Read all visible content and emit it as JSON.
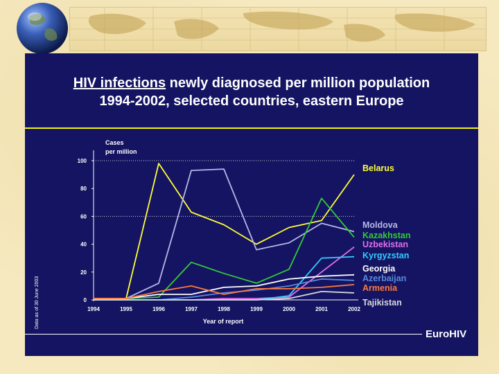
{
  "slide": {
    "title_underlined": "HIV infections",
    "title_rest": " newly diagnosed per million population",
    "title_line2": "1994-2002, selected countries, eastern Europe",
    "brand": "EuroHIV",
    "side_note": "Data as of 30 June 2003"
  },
  "colors": {
    "panel": "#141463",
    "accent_rule": "#f2f200"
  },
  "chart_data": {
    "type": "line",
    "title": "HIV infections newly diagnosed per million population 1994-2002, selected countries, eastern Europe",
    "ylabel": "Cases per million",
    "ylabel_line1": "Cases",
    "ylabel_line2": "per million",
    "xlabel": "Year of report",
    "x": [
      "1994",
      "1995",
      "1996",
      "1997",
      "1998",
      "1999",
      "2000",
      "2001",
      "2002"
    ],
    "yticks": [
      "0",
      "20",
      "40",
      "60",
      "80",
      "100"
    ],
    "ylim": [
      0,
      100
    ],
    "grid": "dotted at 60 and 100",
    "legend": "right, labels placed at line ends",
    "series": [
      {
        "name": "Belarus",
        "color": "#ffff33",
        "values": [
          1,
          1,
          98,
          63,
          54,
          40,
          52,
          57,
          90
        ]
      },
      {
        "name": "Moldova",
        "color": "#b8b8e8",
        "values": [
          1,
          1,
          12,
          93,
          94,
          36,
          41,
          55,
          49
        ]
      },
      {
        "name": "Kazakhstan",
        "color": "#33cc33",
        "values": [
          1,
          1,
          2,
          27,
          19,
          12,
          22,
          73,
          45
        ]
      },
      {
        "name": "Uzbekistan",
        "color": "#e070e8",
        "values": [
          0,
          0,
          0,
          0,
          1,
          1,
          2,
          20,
          38
        ]
      },
      {
        "name": "Kyrgyzstan",
        "color": "#33ccff",
        "values": [
          0,
          0,
          0,
          0,
          0,
          0,
          3,
          30,
          31
        ]
      },
      {
        "name": "Georgia",
        "color": "#ffffff",
        "values": [
          1,
          1,
          4,
          4,
          9,
          10,
          15,
          17,
          18
        ]
      },
      {
        "name": "Azerbaijan",
        "color": "#5a8ad8",
        "values": [
          0,
          0,
          0,
          2,
          5,
          7,
          10,
          15,
          14
        ]
      },
      {
        "name": "Armenia",
        "color": "#ff7a3a",
        "values": [
          1,
          1,
          6,
          10,
          4,
          8,
          8,
          9,
          11
        ]
      },
      {
        "name": "Tajikistan",
        "color": "#d9d9d9",
        "values": [
          0,
          0,
          0,
          0,
          0,
          0,
          1,
          6,
          5
        ]
      }
    ]
  }
}
